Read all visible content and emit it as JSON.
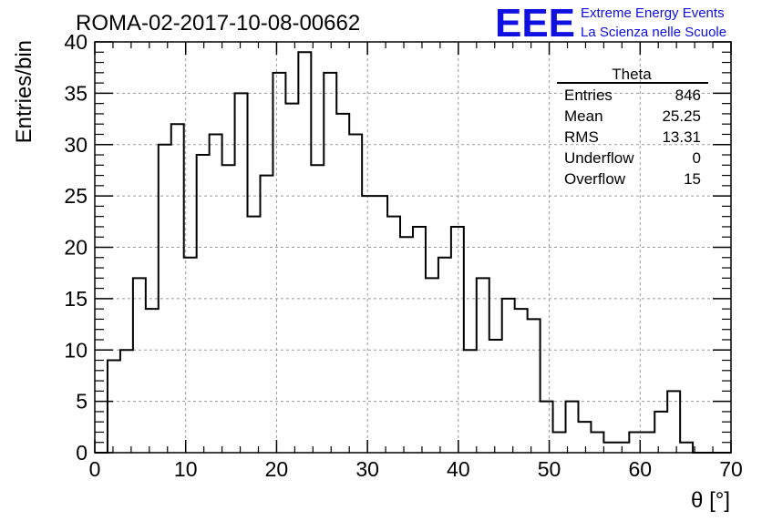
{
  "chart_data": {
    "type": "bar",
    "title": "ROMA-02-2017-10-08-00662",
    "xlabel": "θ [°]",
    "ylabel": "Entries/bin",
    "xlim": [
      0,
      70
    ],
    "ylim": [
      0,
      40
    ],
    "bin_width": 1.4,
    "grid": true,
    "x_ticks": [
      "0",
      "10",
      "20",
      "30",
      "40",
      "50",
      "60",
      "70"
    ],
    "y_ticks": [
      "0",
      "5",
      "10",
      "15",
      "20",
      "25",
      "30",
      "35",
      "40"
    ],
    "values": [
      0,
      9,
      10,
      17,
      14,
      30,
      32,
      19,
      29,
      31,
      28,
      35,
      23,
      27,
      37,
      34,
      39,
      28,
      37,
      33,
      31,
      25,
      25,
      23,
      21,
      22,
      17,
      19,
      22,
      10,
      17,
      11,
      15,
      14,
      13,
      5,
      2,
      5,
      3,
      2,
      1,
      1,
      2,
      2,
      4,
      6,
      1,
      0,
      0,
      0
    ]
  },
  "stats_box": {
    "title": "Theta",
    "rows": [
      {
        "label": "Entries",
        "value": "846"
      },
      {
        "label": "Mean",
        "value": "25.25"
      },
      {
        "label": "RMS",
        "value": "13.31"
      },
      {
        "label": "Underflow",
        "value": "0"
      },
      {
        "label": "Overflow",
        "value": "15"
      }
    ]
  },
  "logo": {
    "text": "EEE",
    "line1": "Extreme Energy Events",
    "line2": "La Scienza nelle Scuole",
    "color": "#1010e0"
  }
}
